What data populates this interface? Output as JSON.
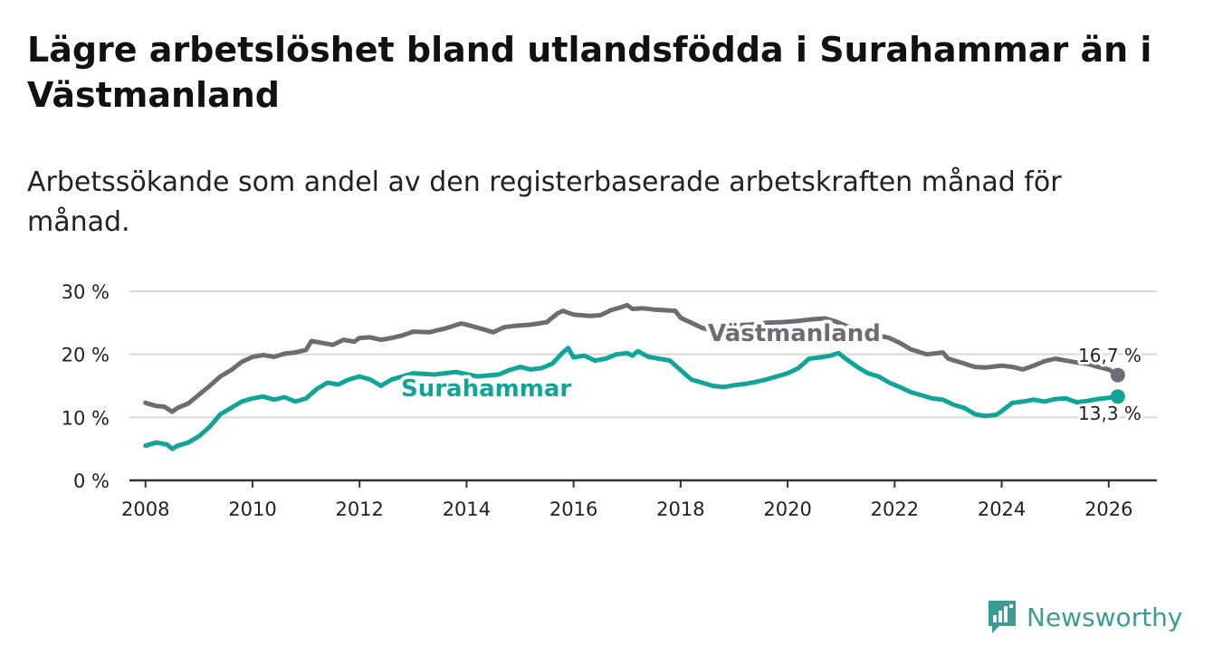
{
  "header": {
    "title": "Lägre arbetslöshet bland utlandsfödda i Surahammar än i Västmanland",
    "subtitle": "Arbetssökande som andel av den registerbaserade arbetskraften månad för månad."
  },
  "logo": {
    "text": "Newsworthy",
    "icon": "bar-chart-speech-bubble-icon"
  },
  "colors": {
    "vastmanland": "#6e6b74",
    "surahammar": "#11a59a",
    "grid": "#d9d9d9",
    "axis": "#333333",
    "logo": "#3a9c95"
  },
  "chart_data": {
    "type": "line",
    "title": "Lägre arbetslöshet bland utlandsfödda i Surahammar än i Västmanland",
    "xlabel": "",
    "ylabel": "",
    "xlim": [
      2007.7,
      2026.9
    ],
    "ylim": [
      0,
      30
    ],
    "grid": true,
    "x_ticks": [
      2008,
      2010,
      2012,
      2014,
      2016,
      2018,
      2020,
      2022,
      2024,
      2026
    ],
    "x_tick_labels": [
      "2008",
      "2010",
      "2012",
      "2014",
      "2016",
      "2018",
      "2020",
      "2022",
      "2024",
      "2026"
    ],
    "y_ticks": [
      0,
      10,
      20,
      30
    ],
    "y_tick_labels": [
      "0 %",
      "10 %",
      "20 %",
      "30 %"
    ],
    "series": [
      {
        "name": "Västmanland",
        "color": "#6e6b74",
        "end_label": "16,7 %",
        "x": [
          2008.0,
          2008.2,
          2008.35,
          2008.5,
          2008.6,
          2008.8,
          2009.0,
          2009.2,
          2009.4,
          2009.6,
          2009.8,
          2010.0,
          2010.2,
          2010.4,
          2010.6,
          2010.8,
          2011.0,
          2011.1,
          2011.3,
          2011.5,
          2011.7,
          2011.9,
          2012.0,
          2012.2,
          2012.4,
          2012.6,
          2012.8,
          2013.0,
          2013.3,
          2013.6,
          2013.9,
          2014.0,
          2014.3,
          2014.5,
          2014.7,
          2014.9,
          2015.2,
          2015.5,
          2015.7,
          2015.8,
          2016.0,
          2016.3,
          2016.5,
          2016.7,
          2016.9,
          2017.0,
          2017.1,
          2017.3,
          2017.5,
          2017.7,
          2017.9,
          2018.0,
          2018.2,
          2018.4,
          2018.6,
          2018.8,
          2019.0,
          2019.3,
          2019.6,
          2019.9,
          2020.2,
          2020.5,
          2020.7,
          2020.9,
          2021.1,
          2021.3,
          2021.6,
          2021.9,
          2022.1,
          2022.3,
          2022.6,
          2022.9,
          2023.0,
          2023.2,
          2023.5,
          2023.7,
          2023.9,
          2024.0,
          2024.2,
          2024.4,
          2024.6,
          2024.8,
          2025.0,
          2025.2,
          2025.4,
          2025.6,
          2025.8,
          2026.0,
          2026.17
        ],
        "values": [
          12.3,
          11.8,
          11.7,
          10.9,
          11.5,
          12.2,
          13.6,
          15.0,
          16.5,
          17.5,
          18.8,
          19.6,
          19.9,
          19.6,
          20.1,
          20.3,
          20.7,
          22.1,
          21.8,
          21.5,
          22.3,
          22.0,
          22.6,
          22.7,
          22.3,
          22.6,
          23.0,
          23.6,
          23.5,
          24.1,
          24.9,
          24.7,
          24.0,
          23.5,
          24.3,
          24.5,
          24.7,
          25.1,
          26.5,
          26.9,
          26.3,
          26.1,
          26.2,
          27.0,
          27.5,
          27.8,
          27.2,
          27.3,
          27.1,
          27.0,
          26.9,
          25.8,
          25.0,
          24.2,
          23.8,
          24.3,
          24.6,
          24.7,
          25.0,
          25.1,
          25.3,
          25.6,
          25.7,
          25.2,
          24.5,
          23.8,
          23.2,
          22.6,
          21.8,
          20.8,
          20.0,
          20.3,
          19.3,
          18.8,
          18.0,
          17.9,
          18.1,
          18.2,
          18.0,
          17.6,
          18.2,
          18.9,
          19.3,
          19.0,
          18.7,
          18.5,
          18.0,
          17.6,
          16.7
        ]
      },
      {
        "name": "Surahammar",
        "color": "#11a59a",
        "end_label": "13,3 %",
        "x": [
          2008.0,
          2008.2,
          2008.4,
          2008.5,
          2008.6,
          2008.8,
          2009.0,
          2009.2,
          2009.4,
          2009.6,
          2009.8,
          2010.0,
          2010.2,
          2010.4,
          2010.6,
          2010.8,
          2011.0,
          2011.2,
          2011.4,
          2011.6,
          2011.8,
          2012.0,
          2012.2,
          2012.4,
          2012.6,
          2012.8,
          2013.0,
          2013.4,
          2013.8,
          2014.2,
          2014.6,
          2014.8,
          2015.0,
          2015.2,
          2015.4,
          2015.6,
          2015.8,
          2015.9,
          2016.0,
          2016.2,
          2016.4,
          2016.6,
          2016.8,
          2017.0,
          2017.1,
          2017.2,
          2017.4,
          2017.6,
          2017.8,
          2018.0,
          2018.2,
          2018.4,
          2018.6,
          2018.8,
          2019.0,
          2019.2,
          2019.4,
          2019.6,
          2019.8,
          2020.0,
          2020.2,
          2020.4,
          2020.6,
          2020.8,
          2020.95,
          2021.1,
          2021.3,
          2021.5,
          2021.7,
          2021.9,
          2022.1,
          2022.3,
          2022.5,
          2022.7,
          2022.9,
          2023.1,
          2023.3,
          2023.5,
          2023.7,
          2023.9,
          2024.0,
          2024.2,
          2024.4,
          2024.6,
          2024.8,
          2025.0,
          2025.2,
          2025.4,
          2025.6,
          2025.8,
          2026.0,
          2026.17
        ],
        "values": [
          5.5,
          6.0,
          5.7,
          5.0,
          5.5,
          6.0,
          7.0,
          8.5,
          10.5,
          11.5,
          12.5,
          13.0,
          13.3,
          12.8,
          13.2,
          12.5,
          13.0,
          14.5,
          15.5,
          15.2,
          16.0,
          16.5,
          16.0,
          15.0,
          16.0,
          16.5,
          17.0,
          16.8,
          17.2,
          16.5,
          16.8,
          17.5,
          18.0,
          17.6,
          17.8,
          18.5,
          20.3,
          21.0,
          19.5,
          19.8,
          19.0,
          19.3,
          20.0,
          20.2,
          19.8,
          20.5,
          19.6,
          19.3,
          19.0,
          17.5,
          16.0,
          15.5,
          15.0,
          14.8,
          15.1,
          15.3,
          15.6,
          16.0,
          16.5,
          17.0,
          17.8,
          19.3,
          19.5,
          19.8,
          20.2,
          19.2,
          18.0,
          17.0,
          16.5,
          15.5,
          14.8,
          14.0,
          13.5,
          13.0,
          12.8,
          12.0,
          11.5,
          10.5,
          10.2,
          10.4,
          11.0,
          12.3,
          12.5,
          12.8,
          12.5,
          12.9,
          13.0,
          12.4,
          12.6,
          12.9,
          13.1,
          13.3
        ]
      }
    ]
  }
}
